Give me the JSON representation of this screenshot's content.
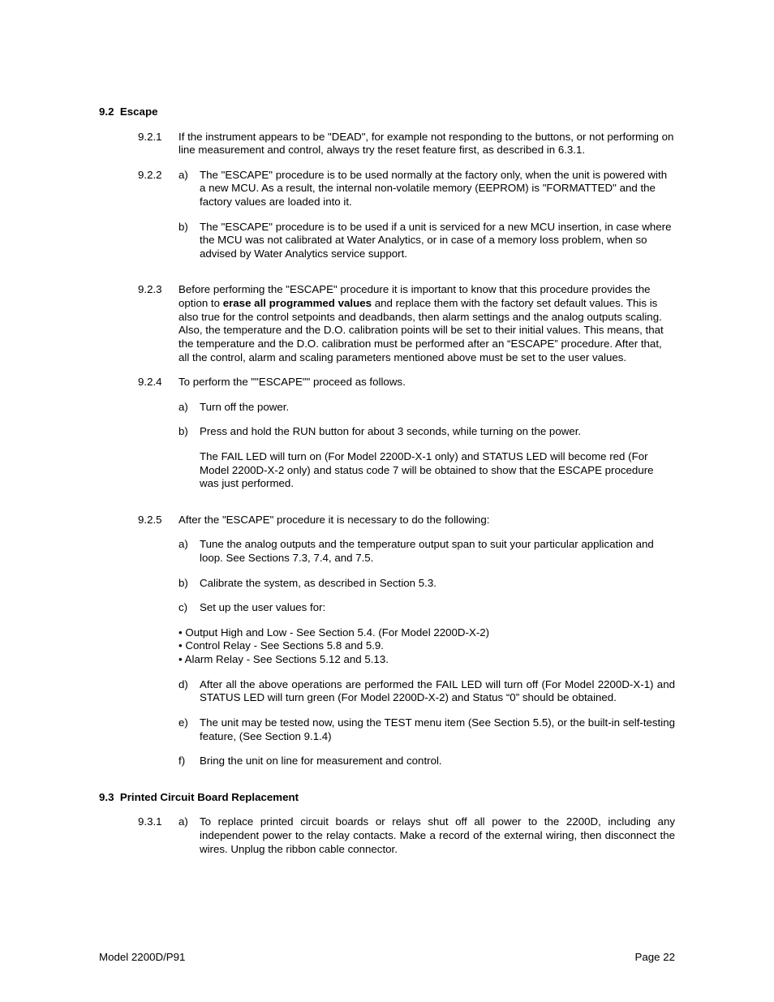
{
  "sections": {
    "s92": {
      "num": "9.2",
      "title": "Escape"
    },
    "s93": {
      "num": "9.3",
      "title": "Printed Circuit Board Replacement"
    }
  },
  "items": {
    "i921": {
      "num": "9.2.1",
      "text": "If the instrument appears to be \"DEAD\", for example not responding to the buttons, or not performing on line measurement and control, always try the reset feature first, as described in 6.3.1."
    },
    "i922": {
      "num": "9.2.2",
      "a": "The \"ESCAPE\" procedure is to be used normally at the factory only, when the unit is powered with a new MCU.  As a result, the internal non-volatile memory (EEPROM) is \"FORMATTED\" and the factory values are loaded into it.",
      "b": "The \"ESCAPE\" procedure is to be used if a unit is serviced for a new MCU insertion, in case where the MCU was not calibrated at Water Analytics, or in case of a memory loss problem, when so advised by Water Analytics service support."
    },
    "i923": {
      "num": "9.2.3",
      "pre": "Before performing the \"ESCAPE\" procedure it is important to know that this procedure provides the option to ",
      "bold": "erase all programmed values",
      "post": " and replace them with the factory set default values.  This is also true for the control setpoints and deadbands, then alarm settings and the analog outputs scaling.  Also, the temperature and the D.O. calibration points will be set to their initial values.  This means, that the temperature and the D.O. calibration must be performed after an “ESCAPE” procedure.  After that, all the control, alarm and scaling parameters mentioned above must be set to the user values."
    },
    "i924": {
      "num": "9.2.4",
      "intro": "To perform the \"\"ESCAPE\"\" proceed as follows.",
      "a": "Turn off the power.",
      "b": "Press and hold the RUN button for about 3 seconds, while turning on the power.",
      "note": "The FAIL LED will turn on (For Model 2200D-X-1 only) and STATUS LED will become red (For Model 2200D-X-2 only) and status code 7 will be obtained to show that the ESCAPE procedure was just performed."
    },
    "i925": {
      "num": "9.2.5",
      "intro": "After the \"ESCAPE\" procedure it is necessary to do the following:",
      "a": "Tune the analog outputs and the temperature output span to suit your particular application and loop.  See Sections 7.3, 7.4, and 7.5.",
      "b": "Calibrate the system, as described in Section 5.3.",
      "c": " Set up the user values for:",
      "bullets": {
        "b1": "•  Output High and Low - See Section 5.4.  (For Model 2200D-X-2)",
        "b2": "•  Control Relay - See Sections 5.8 and 5.9.",
        "b3": "•  Alarm Relay - See Sections 5.12 and 5.13."
      },
      "d": "After all the above operations are performed the FAIL LED will turn off (For Model 2200D-X-1) and STATUS LED will turn green (For Model 2200D-X-2) and Status “0” should be obtained.",
      "e": "The unit may be tested now, using the TEST menu item (See Section 5.5), or the built-in self-testing feature, (See Section 9.1.4)",
      "f": "Bring the unit on line for measurement and control."
    },
    "i931": {
      "num": "9.3.1",
      "a": "To replace printed circuit boards or relays shut off all power to the 2200D, including any independent power to the relay contacts.  Make a record of the external wiring, then disconnect the wires.  Unplug the ribbon cable connector."
    }
  },
  "labels": {
    "a": "a)",
    "b": "b)",
    "c": "c)",
    "d": "d)",
    "e": "e)",
    "f": "f)"
  },
  "footer": {
    "left": "Model 2200D/P91",
    "right": "Page 22"
  }
}
